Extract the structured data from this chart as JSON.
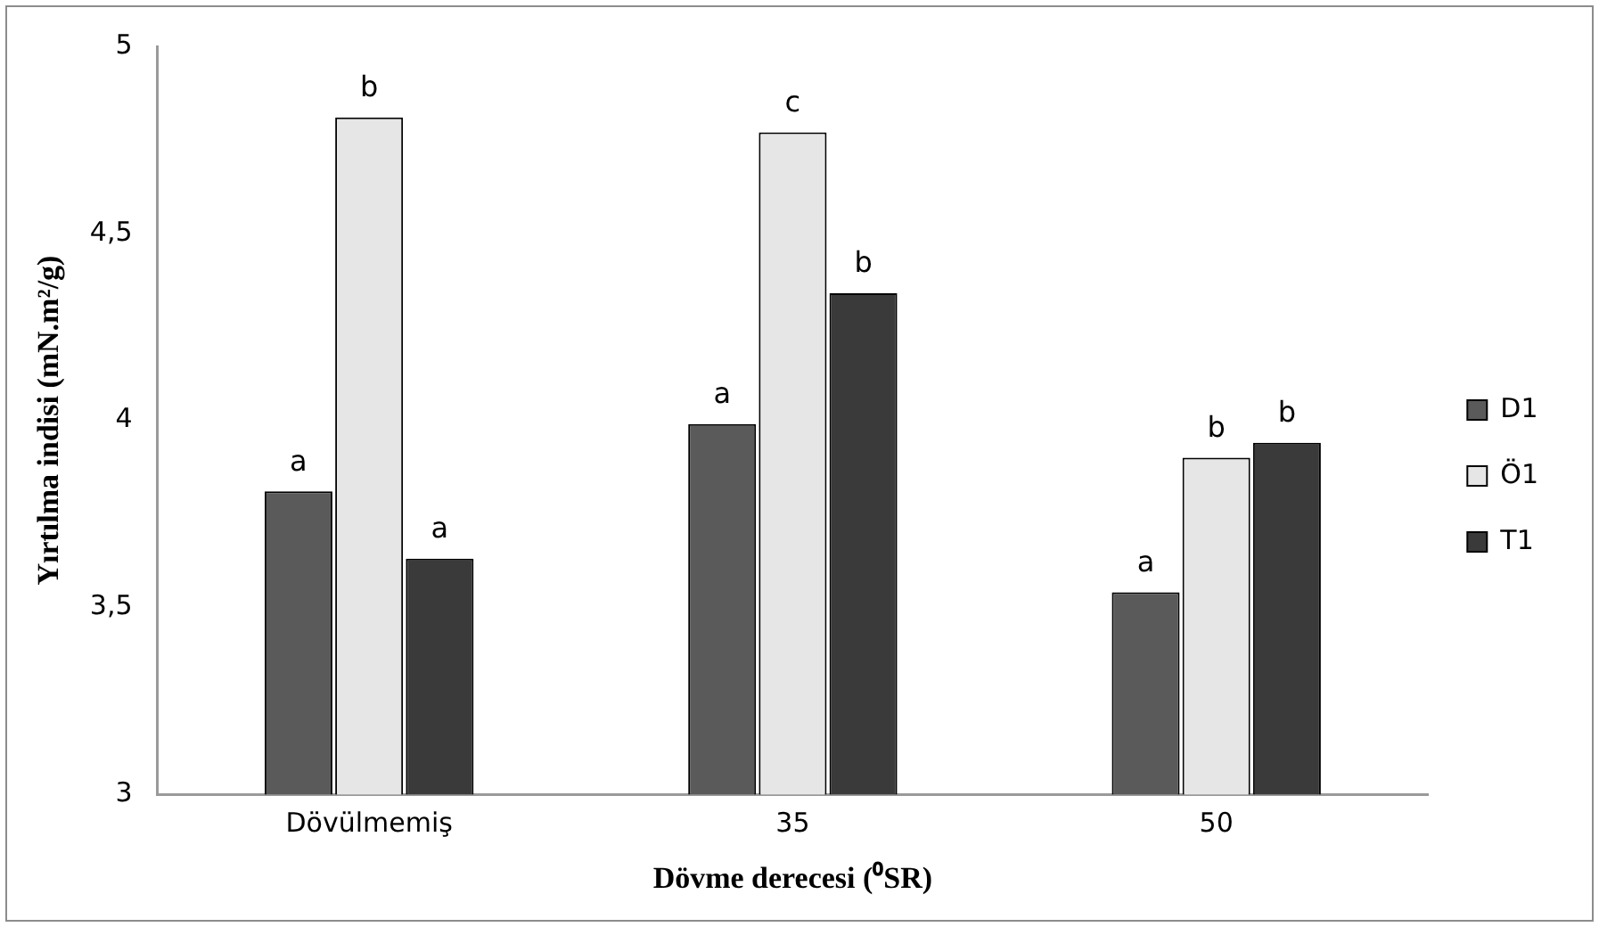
{
  "chart_data": {
    "type": "bar",
    "xlabel": "Dövme derecesi (⁰SR)",
    "ylabel": "Yırtılma indisi (mN.m²/g)",
    "categories": [
      "Dövülmemiş",
      "35",
      "50"
    ],
    "series": [
      {
        "name": "D1",
        "color": "#5a5a5a",
        "values": [
          3.81,
          3.99,
          3.54
        ],
        "value_labels": [
          "a",
          "a",
          "a"
        ]
      },
      {
        "name": "Ö1",
        "color": "#e6e6e6",
        "values": [
          4.81,
          4.77,
          3.9
        ],
        "value_labels": [
          "b",
          "c",
          "b"
        ]
      },
      {
        "name": "T1",
        "color": "#3a3a3a",
        "values": [
          3.63,
          4.34,
          3.94
        ],
        "value_labels": [
          "a",
          "b",
          "b"
        ]
      }
    ],
    "ylim": [
      3,
      5
    ],
    "yticks": [
      3,
      {
        "value": 3.5,
        "label": "3,5"
      },
      4,
      {
        "value": 4.5,
        "label": "4,5"
      },
      5
    ],
    "grid": false,
    "legend": "right"
  }
}
